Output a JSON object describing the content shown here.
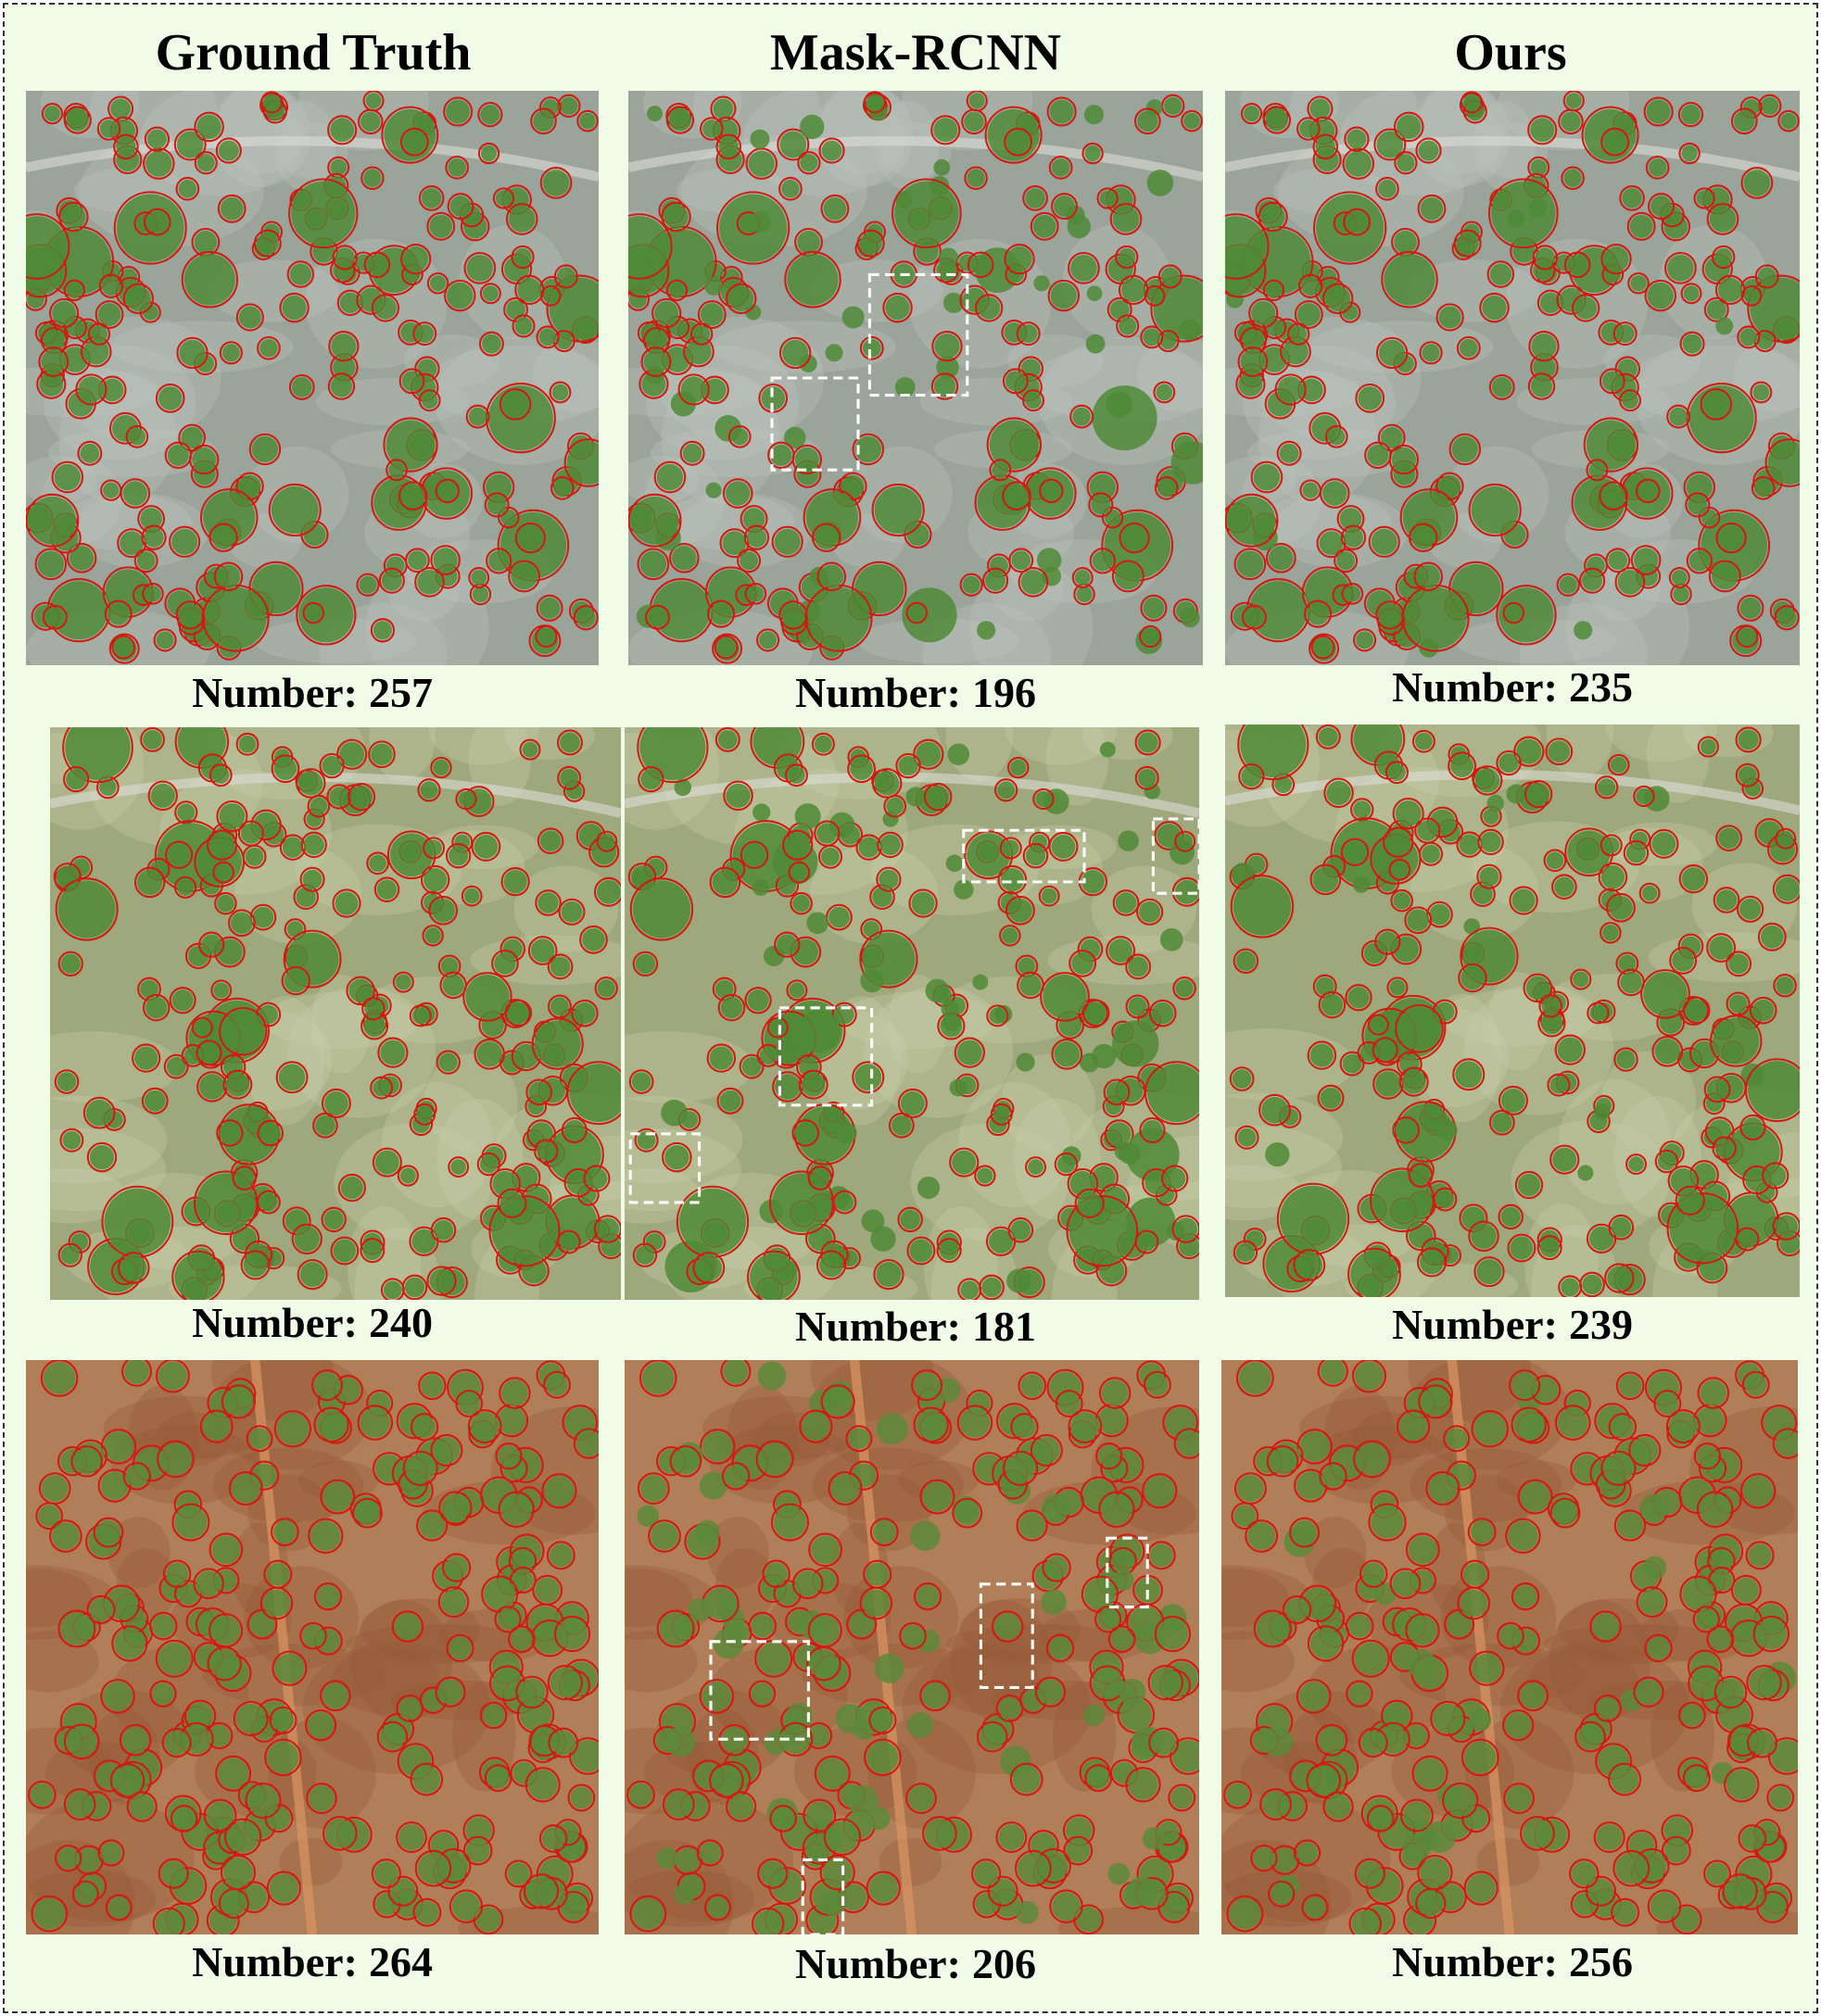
{
  "columns": [
    {
      "title": "Ground Truth"
    },
    {
      "title": "Mask-RCNN"
    },
    {
      "title": "Ours"
    }
  ],
  "rows": [
    {
      "terrain": "grey-field",
      "panels": [
        {
          "label": "Number",
          "value": "257",
          "highlight_boxes": 0
        },
        {
          "label": "Number",
          "value": "196",
          "highlight_boxes": 2
        },
        {
          "label": "Number",
          "value": "235",
          "highlight_boxes": 0
        }
      ]
    },
    {
      "terrain": "green-field",
      "panels": [
        {
          "label": "Number",
          "value": "240",
          "highlight_boxes": 0
        },
        {
          "label": "Number",
          "value": "181",
          "highlight_boxes": 4
        },
        {
          "label": "Number",
          "value": "239",
          "highlight_boxes": 0
        }
      ]
    },
    {
      "terrain": "red-soil-plantation",
      "panels": [
        {
          "label": "Number",
          "value": "264",
          "highlight_boxes": 0
        },
        {
          "label": "Number",
          "value": "206",
          "highlight_boxes": 4
        },
        {
          "label": "Number",
          "value": "256",
          "highlight_boxes": 0
        }
      ]
    }
  ],
  "colors": {
    "background": "#f0fbe8",
    "outline": "#d11a10",
    "highlight_box": "#ffffff",
    "grey_field": "#9aa49a",
    "green_field": "#9fa77c",
    "red_soil": "#b07e58",
    "tree_canopy": "#4f8a36"
  }
}
